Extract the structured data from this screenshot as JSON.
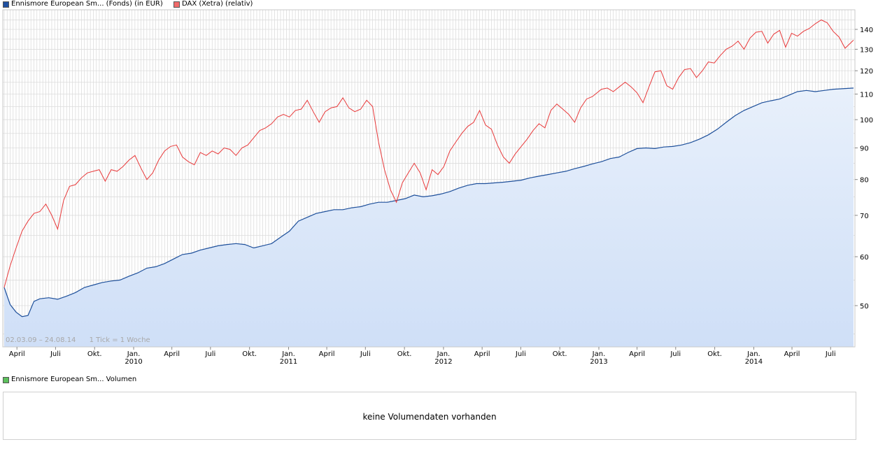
{
  "legend": {
    "series1": "Ennismore European Sm... (Fonds) (in EUR)",
    "series2": "DAX (Xetra) (relativ)",
    "volume": "Ennismore European Sm... Volumen"
  },
  "info": {
    "range": "02.03.09 – 24.08.14",
    "tick": "1 Tick = 1 Woche"
  },
  "volume_panel": {
    "message": "keine Volumendaten vorhanden"
  },
  "colors": {
    "fund_line": "#1d4f9a",
    "fund_swatch": "#1f4fa0",
    "fund_fill_top": "#e8f0fb",
    "fund_fill_bottom": "#cfdff7",
    "dax_line": "#e8393a",
    "dax_swatch": "#f06a6a",
    "volume_swatch": "#5cc05c",
    "grid": "#dcdcdc"
  },
  "chart_data": {
    "type": "line",
    "y_scale": "log",
    "y_ticks": [
      50,
      60,
      70,
      80,
      90,
      100,
      110,
      120,
      130,
      140
    ],
    "x_ticks": [
      {
        "date": "2009-04-01",
        "label": "April",
        "year": ""
      },
      {
        "date": "2009-07-01",
        "label": "Juli",
        "year": ""
      },
      {
        "date": "2009-10-01",
        "label": "Okt.",
        "year": ""
      },
      {
        "date": "2010-01-01",
        "label": "Jan.",
        "year": "2010"
      },
      {
        "date": "2010-04-01",
        "label": "April",
        "year": ""
      },
      {
        "date": "2010-07-01",
        "label": "Juli",
        "year": ""
      },
      {
        "date": "2010-10-01",
        "label": "Okt.",
        "year": ""
      },
      {
        "date": "2011-01-01",
        "label": "Jan.",
        "year": "2011"
      },
      {
        "date": "2011-04-01",
        "label": "April",
        "year": ""
      },
      {
        "date": "2011-07-01",
        "label": "Juli",
        "year": ""
      },
      {
        "date": "2011-10-01",
        "label": "Okt.",
        "year": ""
      },
      {
        "date": "2012-01-01",
        "label": "Jan.",
        "year": "2012"
      },
      {
        "date": "2012-04-01",
        "label": "April",
        "year": ""
      },
      {
        "date": "2012-07-01",
        "label": "Juli",
        "year": ""
      },
      {
        "date": "2012-10-01",
        "label": "Okt.",
        "year": ""
      },
      {
        "date": "2013-01-01",
        "label": "Jan.",
        "year": "2013"
      },
      {
        "date": "2013-04-01",
        "label": "April",
        "year": ""
      },
      {
        "date": "2013-07-01",
        "label": "Juli",
        "year": ""
      },
      {
        "date": "2013-10-01",
        "label": "Okt.",
        "year": ""
      },
      {
        "date": "2014-01-01",
        "label": "Jan.",
        "year": "2014"
      },
      {
        "date": "2014-04-01",
        "label": "April",
        "year": ""
      },
      {
        "date": "2014-07-01",
        "label": "Juli",
        "year": ""
      }
    ],
    "series": [
      {
        "name": "Ennismore European Sm... (Fonds) (in EUR)",
        "style": "area",
        "points": [
          [
            "2009-03-02",
            53.5
          ],
          [
            "2009-03-16",
            50.2
          ],
          [
            "2009-03-30",
            48.8
          ],
          [
            "2009-04-13",
            48.0
          ],
          [
            "2009-04-27",
            48.2
          ],
          [
            "2009-05-11",
            50.8
          ],
          [
            "2009-05-25",
            51.3
          ],
          [
            "2009-06-15",
            51.5
          ],
          [
            "2009-07-06",
            51.2
          ],
          [
            "2009-07-27",
            51.8
          ],
          [
            "2009-08-17",
            52.5
          ],
          [
            "2009-09-07",
            53.5
          ],
          [
            "2009-09-28",
            54.0
          ],
          [
            "2009-10-19",
            54.5
          ],
          [
            "2009-11-09",
            54.8
          ],
          [
            "2009-11-30",
            55.0
          ],
          [
            "2009-12-21",
            55.8
          ],
          [
            "2010-01-11",
            56.5
          ],
          [
            "2010-02-01",
            57.5
          ],
          [
            "2010-02-22",
            57.8
          ],
          [
            "2010-03-15",
            58.5
          ],
          [
            "2010-04-05",
            59.5
          ],
          [
            "2010-04-26",
            60.5
          ],
          [
            "2010-05-17",
            60.8
          ],
          [
            "2010-06-07",
            61.5
          ],
          [
            "2010-06-28",
            62.0
          ],
          [
            "2010-07-19",
            62.5
          ],
          [
            "2010-08-09",
            62.8
          ],
          [
            "2010-08-30",
            63.0
          ],
          [
            "2010-09-20",
            62.8
          ],
          [
            "2010-10-11",
            62.0
          ],
          [
            "2010-11-01",
            62.5
          ],
          [
            "2010-11-22",
            63.0
          ],
          [
            "2010-12-13",
            64.5
          ],
          [
            "2011-01-03",
            66.0
          ],
          [
            "2011-01-24",
            68.5
          ],
          [
            "2011-02-14",
            69.5
          ],
          [
            "2011-03-07",
            70.5
          ],
          [
            "2011-03-28",
            71.0
          ],
          [
            "2011-04-18",
            71.5
          ],
          [
            "2011-05-09",
            71.5
          ],
          [
            "2011-05-30",
            72.0
          ],
          [
            "2011-06-20",
            72.3
          ],
          [
            "2011-07-11",
            73.0
          ],
          [
            "2011-08-01",
            73.5
          ],
          [
            "2011-08-22",
            73.5
          ],
          [
            "2011-09-12",
            74.0
          ],
          [
            "2011-10-03",
            74.5
          ],
          [
            "2011-10-24",
            75.5
          ],
          [
            "2011-11-14",
            75.0
          ],
          [
            "2011-12-05",
            75.3
          ],
          [
            "2011-12-26",
            75.8
          ],
          [
            "2012-01-16",
            76.5
          ],
          [
            "2012-02-06",
            77.5
          ],
          [
            "2012-02-27",
            78.3
          ],
          [
            "2012-03-19",
            78.8
          ],
          [
            "2012-04-09",
            78.8
          ],
          [
            "2012-04-30",
            79.0
          ],
          [
            "2012-05-21",
            79.2
          ],
          [
            "2012-06-11",
            79.5
          ],
          [
            "2012-07-02",
            79.8
          ],
          [
            "2012-07-23",
            80.5
          ],
          [
            "2012-08-13",
            81.0
          ],
          [
            "2012-09-03",
            81.5
          ],
          [
            "2012-09-24",
            82.0
          ],
          [
            "2012-10-15",
            82.5
          ],
          [
            "2012-11-05",
            83.3
          ],
          [
            "2012-11-26",
            84.0
          ],
          [
            "2012-12-17",
            84.8
          ],
          [
            "2013-01-07",
            85.5
          ],
          [
            "2013-01-28",
            86.5
          ],
          [
            "2013-02-18",
            87.0
          ],
          [
            "2013-03-11",
            88.5
          ],
          [
            "2013-04-01",
            89.8
          ],
          [
            "2013-04-22",
            90.0
          ],
          [
            "2013-05-13",
            89.8
          ],
          [
            "2013-06-03",
            90.3
          ],
          [
            "2013-06-24",
            90.5
          ],
          [
            "2013-07-15",
            91.0
          ],
          [
            "2013-08-05",
            91.8
          ],
          [
            "2013-08-26",
            93.0
          ],
          [
            "2013-09-16",
            94.5
          ],
          [
            "2013-10-07",
            96.5
          ],
          [
            "2013-10-28",
            99.0
          ],
          [
            "2013-11-18",
            101.5
          ],
          [
            "2013-12-09",
            103.5
          ],
          [
            "2013-12-30",
            105.0
          ],
          [
            "2014-01-20",
            106.5
          ],
          [
            "2014-02-10",
            107.3
          ],
          [
            "2014-03-03",
            108.0
          ],
          [
            "2014-03-24",
            109.5
          ],
          [
            "2014-04-14",
            111.0
          ],
          [
            "2014-05-05",
            111.5
          ],
          [
            "2014-05-26",
            111.0
          ],
          [
            "2014-06-16",
            111.5
          ],
          [
            "2014-07-07",
            112.0
          ],
          [
            "2014-07-28",
            112.2
          ],
          [
            "2014-08-24",
            112.5
          ]
        ]
      },
      {
        "name": "DAX (Xetra) (relativ)",
        "style": "line",
        "points": [
          [
            "2009-03-02",
            53.5
          ],
          [
            "2009-03-16",
            58.0
          ],
          [
            "2009-03-30",
            62.0
          ],
          [
            "2009-04-13",
            66.0
          ],
          [
            "2009-04-27",
            68.5
          ],
          [
            "2009-05-11",
            70.5
          ],
          [
            "2009-05-25",
            71.0
          ],
          [
            "2009-06-08",
            73.0
          ],
          [
            "2009-06-22",
            70.0
          ],
          [
            "2009-07-06",
            66.5
          ],
          [
            "2009-07-20",
            74.0
          ],
          [
            "2009-08-03",
            78.0
          ],
          [
            "2009-08-17",
            78.5
          ],
          [
            "2009-08-31",
            80.5
          ],
          [
            "2009-09-14",
            82.0
          ],
          [
            "2009-09-28",
            82.5
          ],
          [
            "2009-10-12",
            83.0
          ],
          [
            "2009-10-26",
            79.5
          ],
          [
            "2009-11-09",
            83.0
          ],
          [
            "2009-11-23",
            82.5
          ],
          [
            "2009-12-07",
            84.0
          ],
          [
            "2009-12-21",
            86.0
          ],
          [
            "2010-01-04",
            87.5
          ],
          [
            "2010-01-18",
            83.5
          ],
          [
            "2010-02-01",
            80.0
          ],
          [
            "2010-02-15",
            82.0
          ],
          [
            "2010-03-01",
            86.0
          ],
          [
            "2010-03-15",
            89.0
          ],
          [
            "2010-03-29",
            90.5
          ],
          [
            "2010-04-12",
            91.0
          ],
          [
            "2010-04-26",
            87.0
          ],
          [
            "2010-05-10",
            85.5
          ],
          [
            "2010-05-24",
            84.5
          ],
          [
            "2010-06-07",
            88.5
          ],
          [
            "2010-06-21",
            87.5
          ],
          [
            "2010-07-05",
            89.0
          ],
          [
            "2010-07-19",
            88.0
          ],
          [
            "2010-08-02",
            90.0
          ],
          [
            "2010-08-16",
            89.5
          ],
          [
            "2010-08-30",
            87.5
          ],
          [
            "2010-09-13",
            90.0
          ],
          [
            "2010-09-27",
            91.0
          ],
          [
            "2010-10-11",
            93.5
          ],
          [
            "2010-10-25",
            96.0
          ],
          [
            "2010-11-08",
            97.0
          ],
          [
            "2010-11-22",
            98.5
          ],
          [
            "2010-12-06",
            101.0
          ],
          [
            "2010-12-20",
            102.0
          ],
          [
            "2011-01-03",
            101.0
          ],
          [
            "2011-01-17",
            103.5
          ],
          [
            "2011-01-31",
            104.0
          ],
          [
            "2011-02-14",
            107.5
          ],
          [
            "2011-02-28",
            103.0
          ],
          [
            "2011-03-14",
            99.0
          ],
          [
            "2011-03-28",
            103.0
          ],
          [
            "2011-04-11",
            104.5
          ],
          [
            "2011-04-25",
            105.0
          ],
          [
            "2011-05-09",
            108.5
          ],
          [
            "2011-05-23",
            104.5
          ],
          [
            "2011-06-06",
            103.0
          ],
          [
            "2011-06-20",
            104.0
          ],
          [
            "2011-07-04",
            107.5
          ],
          [
            "2011-07-18",
            105.0
          ],
          [
            "2011-08-01",
            92.0
          ],
          [
            "2011-08-15",
            83.0
          ],
          [
            "2011-08-29",
            77.0
          ],
          [
            "2011-09-12",
            73.5
          ],
          [
            "2011-09-26",
            79.0
          ],
          [
            "2011-10-10",
            82.0
          ],
          [
            "2011-10-24",
            85.0
          ],
          [
            "2011-11-07",
            82.0
          ],
          [
            "2011-11-21",
            77.0
          ],
          [
            "2011-12-05",
            83.0
          ],
          [
            "2011-12-19",
            81.5
          ],
          [
            "2012-01-02",
            84.0
          ],
          [
            "2012-01-16",
            89.0
          ],
          [
            "2012-01-30",
            92.0
          ],
          [
            "2012-02-13",
            95.0
          ],
          [
            "2012-02-27",
            97.5
          ],
          [
            "2012-03-12",
            99.0
          ],
          [
            "2012-03-26",
            103.5
          ],
          [
            "2012-04-09",
            98.0
          ],
          [
            "2012-04-23",
            96.5
          ],
          [
            "2012-05-07",
            91.0
          ],
          [
            "2012-05-21",
            87.0
          ],
          [
            "2012-06-04",
            85.0
          ],
          [
            "2012-06-18",
            88.0
          ],
          [
            "2012-07-02",
            90.5
          ],
          [
            "2012-07-16",
            93.0
          ],
          [
            "2012-07-30",
            96.0
          ],
          [
            "2012-08-13",
            98.5
          ],
          [
            "2012-08-27",
            97.0
          ],
          [
            "2012-09-10",
            103.5
          ],
          [
            "2012-09-24",
            106.0
          ],
          [
            "2012-10-08",
            104.0
          ],
          [
            "2012-10-22",
            102.0
          ],
          [
            "2012-11-05",
            99.0
          ],
          [
            "2012-11-19",
            104.5
          ],
          [
            "2012-12-03",
            108.0
          ],
          [
            "2012-12-17",
            109.0
          ],
          [
            "2013-01-07",
            112.0
          ],
          [
            "2013-01-21",
            112.5
          ],
          [
            "2013-02-04",
            111.0
          ],
          [
            "2013-02-18",
            113.0
          ],
          [
            "2013-03-04",
            115.0
          ],
          [
            "2013-03-18",
            113.0
          ],
          [
            "2013-04-01",
            110.5
          ],
          [
            "2013-04-15",
            106.5
          ],
          [
            "2013-04-29",
            113.0
          ],
          [
            "2013-05-13",
            119.5
          ],
          [
            "2013-05-27",
            120.0
          ],
          [
            "2013-06-10",
            113.5
          ],
          [
            "2013-06-24",
            112.0
          ],
          [
            "2013-07-08",
            117.0
          ],
          [
            "2013-07-22",
            120.5
          ],
          [
            "2013-08-05",
            121.0
          ],
          [
            "2013-08-19",
            117.0
          ],
          [
            "2013-09-02",
            120.0
          ],
          [
            "2013-09-16",
            124.0
          ],
          [
            "2013-09-30",
            123.5
          ],
          [
            "2013-10-14",
            127.0
          ],
          [
            "2013-10-28",
            130.0
          ],
          [
            "2013-11-11",
            131.5
          ],
          [
            "2013-11-25",
            134.0
          ],
          [
            "2013-12-09",
            130.0
          ],
          [
            "2013-12-23",
            135.5
          ],
          [
            "2014-01-06",
            138.5
          ],
          [
            "2014-01-20",
            139.0
          ],
          [
            "2014-02-03",
            133.0
          ],
          [
            "2014-02-17",
            137.5
          ],
          [
            "2014-03-03",
            139.5
          ],
          [
            "2014-03-17",
            131.0
          ],
          [
            "2014-03-31",
            138.0
          ],
          [
            "2014-04-14",
            136.5
          ],
          [
            "2014-04-28",
            139.0
          ],
          [
            "2014-05-12",
            140.5
          ],
          [
            "2014-05-26",
            143.0
          ],
          [
            "2014-06-09",
            145.0
          ],
          [
            "2014-06-23",
            143.5
          ],
          [
            "2014-07-07",
            139.0
          ],
          [
            "2014-07-21",
            136.0
          ],
          [
            "2014-08-04",
            130.5
          ],
          [
            "2014-08-24",
            134.5
          ]
        ]
      }
    ]
  }
}
